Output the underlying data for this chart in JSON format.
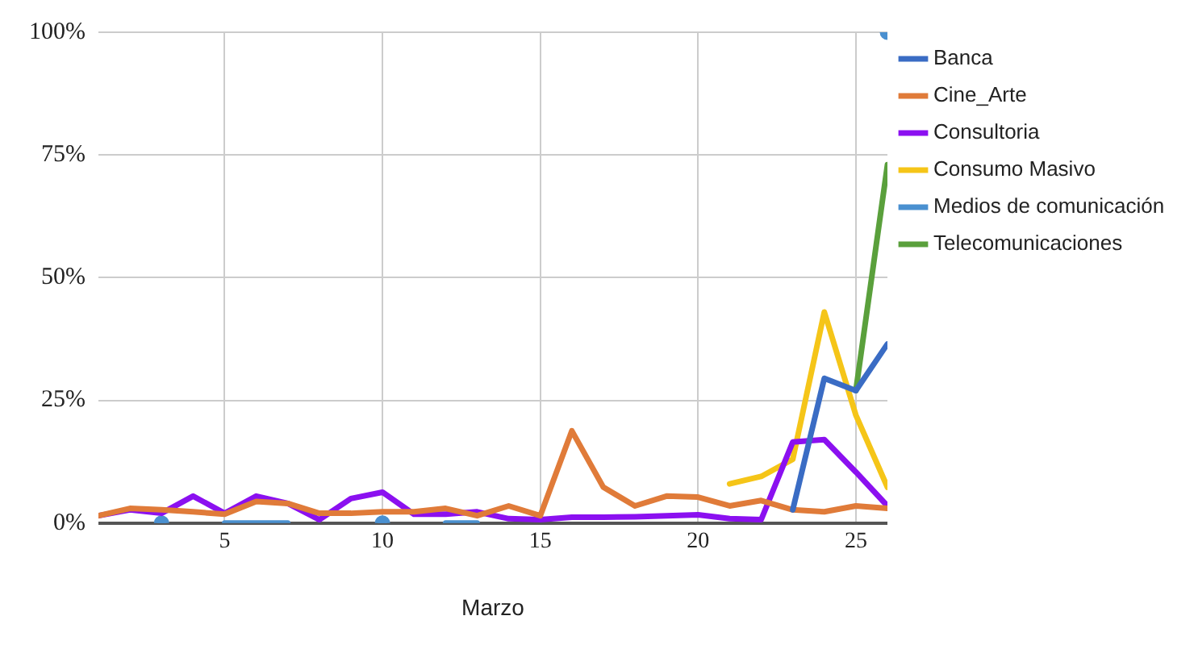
{
  "chart_data": {
    "type": "line",
    "xlabel": "Marzo",
    "x": [
      1,
      2,
      3,
      4,
      5,
      6,
      7,
      8,
      9,
      10,
      11,
      12,
      13,
      14,
      15,
      16,
      17,
      18,
      19,
      20,
      21,
      22,
      23,
      24,
      25,
      26
    ],
    "xlim": [
      1,
      26
    ],
    "xticks": [
      5,
      10,
      15,
      20,
      25
    ],
    "ylim": [
      0,
      100
    ],
    "yticks": [
      {
        "value": 0,
        "label": "0%"
      },
      {
        "value": 25,
        "label": "25%"
      },
      {
        "value": 50,
        "label": "50%"
      },
      {
        "value": 75,
        "label": "75%"
      },
      {
        "value": 100,
        "label": "100%"
      }
    ],
    "grid": true,
    "legend": "right",
    "line_style": "solid",
    "series": [
      {
        "name": "Banca",
        "color": "#3a6cc4",
        "values": [
          null,
          null,
          null,
          null,
          null,
          null,
          null,
          null,
          null,
          null,
          null,
          null,
          null,
          null,
          null,
          null,
          null,
          null,
          null,
          null,
          null,
          null,
          2.7,
          29.5,
          27,
          36.5
        ]
      },
      {
        "name": "Cine_Arte",
        "color": "#e07b39",
        "values": [
          1.5,
          3,
          2.7,
          2.3,
          1.8,
          4.4,
          4,
          2,
          2,
          2.3,
          2.3,
          3,
          1.5,
          3.5,
          1.5,
          18.8,
          7.3,
          3.5,
          5.5,
          5.3,
          3.5,
          4.6,
          2.7,
          2.3,
          3.5,
          3
        ]
      },
      {
        "name": "Consultoria",
        "color": "#8b10f0",
        "values": [
          1.5,
          2.7,
          2,
          5.5,
          2,
          5.5,
          4,
          0.7,
          5,
          6.3,
          1.8,
          1.8,
          2.3,
          0.9,
          0.7,
          1.2,
          1.2,
          1.3,
          1.5,
          1.7,
          0.9,
          0.7,
          16.5,
          17,
          10.4,
          3.5
        ]
      },
      {
        "name": "Consumo Masivo",
        "color": "#f5c518",
        "values": [
          null,
          null,
          null,
          null,
          null,
          null,
          null,
          null,
          null,
          null,
          null,
          null,
          null,
          null,
          null,
          null,
          null,
          null,
          null,
          null,
          8,
          9.5,
          13,
          43,
          22,
          7.3
        ]
      },
      {
        "name": "Medios de comunicación",
        "color": "#4a90d0",
        "values": [
          null,
          null,
          0,
          null,
          0,
          0,
          0,
          null,
          null,
          0,
          null,
          0,
          0,
          null,
          null,
          null,
          null,
          null,
          null,
          null,
          null,
          null,
          null,
          null,
          null,
          100
        ]
      },
      {
        "name": "Telecomunicaciones",
        "color": "#5aa03c",
        "values": [
          null,
          null,
          null,
          null,
          null,
          null,
          null,
          null,
          null,
          null,
          null,
          null,
          null,
          null,
          null,
          null,
          null,
          null,
          null,
          null,
          null,
          null,
          null,
          null,
          27,
          73
        ]
      }
    ]
  }
}
